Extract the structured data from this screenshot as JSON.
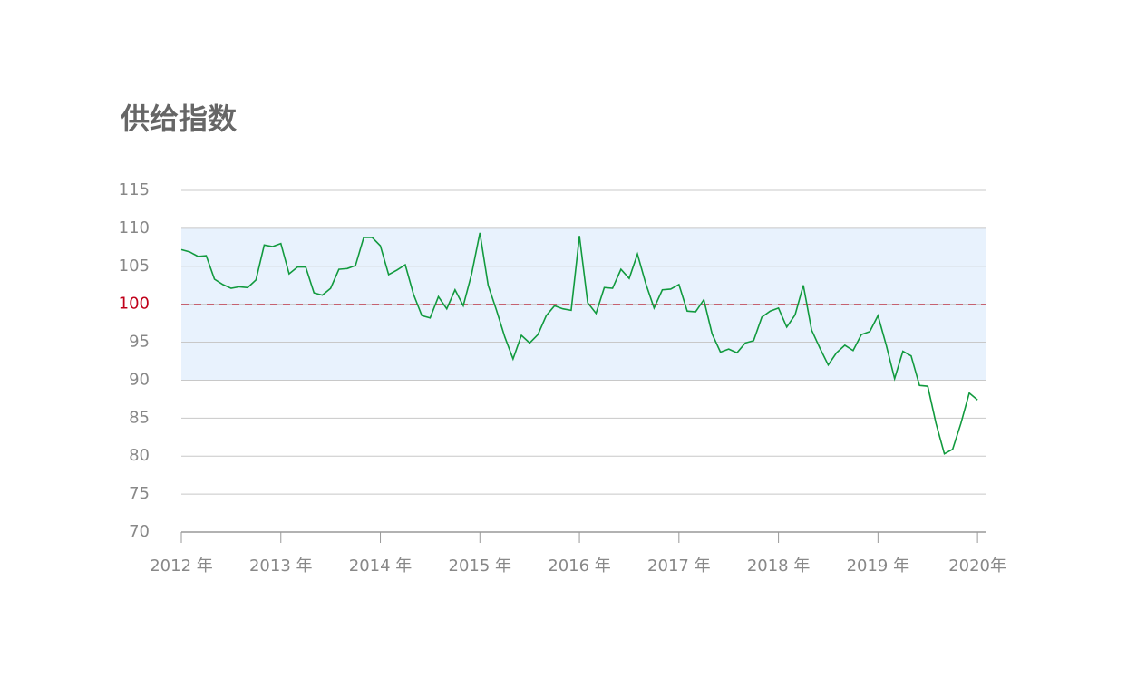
{
  "chart_data": {
    "type": "line",
    "title": "供给指数",
    "x": [
      2012,
      2012.083,
      2012.167,
      2012.25,
      2012.333,
      2012.417,
      2012.5,
      2012.583,
      2012.667,
      2012.75,
      2012.833,
      2012.917,
      2013,
      2013.083,
      2013.167,
      2013.25,
      2013.333,
      2013.417,
      2013.5,
      2013.583,
      2013.667,
      2013.75,
      2013.833,
      2013.917,
      2014,
      2014.083,
      2014.167,
      2014.25,
      2014.333,
      2014.417,
      2014.5,
      2014.583,
      2014.667,
      2014.75,
      2014.833,
      2014.917,
      2015,
      2015.083,
      2015.167,
      2015.25,
      2015.333,
      2015.417,
      2015.5,
      2015.583,
      2015.667,
      2015.75,
      2015.833,
      2015.917,
      2016,
      2016.083,
      2016.167,
      2016.25,
      2016.333,
      2016.417,
      2016.5,
      2016.583,
      2016.667,
      2016.75,
      2016.833,
      2016.917,
      2017,
      2017.083,
      2017.167,
      2017.25,
      2017.333,
      2017.417,
      2017.5,
      2017.583,
      2017.667,
      2017.75,
      2017.833,
      2017.917,
      2018,
      2018.083,
      2018.167,
      2018.25,
      2018.333,
      2018.417,
      2018.5,
      2018.583,
      2018.667,
      2018.75,
      2018.833,
      2018.917,
      2019,
      2019.083,
      2019.167,
      2019.25,
      2019.333,
      2019.417,
      2019.5,
      2019.583,
      2019.667,
      2019.75,
      2019.833,
      2019.917,
      2020
    ],
    "series": [
      {
        "color": "#119a3e",
        "values": [
          107.2,
          106.9,
          106.3,
          106.4,
          103.3,
          102.6,
          102.1,
          102.3,
          102.2,
          103.2,
          107.8,
          107.6,
          108.0,
          104.0,
          104.9,
          104.9,
          101.5,
          101.2,
          102.1,
          104.6,
          104.7,
          105.1,
          108.8,
          108.8,
          107.7,
          103.9,
          104.5,
          105.2,
          101.3,
          98.5,
          98.2,
          101.0,
          99.4,
          101.9,
          99.8,
          104.0,
          109.4,
          102.5,
          99.2,
          95.7,
          92.8,
          95.9,
          94.9,
          96.0,
          98.5,
          99.8,
          99.4,
          99.2,
          109.0,
          100.2,
          98.8,
          102.2,
          102.1,
          104.6,
          103.4,
          106.6,
          102.7,
          99.5,
          101.9,
          102.0,
          102.6,
          99.1,
          99.0,
          100.6,
          96.1,
          93.7,
          94.1,
          93.6,
          94.9,
          95.2,
          98.3,
          99.1,
          99.5,
          97.0,
          98.6,
          102.5,
          96.6,
          94.2,
          92.0,
          93.6,
          94.6,
          93.9,
          96.0,
          96.4,
          98.5,
          94.6,
          90.2,
          93.8,
          93.2,
          89.3,
          89.2,
          84.3,
          80.3,
          80.9,
          84.3,
          88.3,
          87.4
        ]
      }
    ],
    "xlim": [
      2012,
      2020.09
    ],
    "xticks": [
      {
        "value": 2012,
        "label": "2012 年"
      },
      {
        "value": 2013,
        "label": "2013 年"
      },
      {
        "value": 2014,
        "label": "2014 年"
      },
      {
        "value": 2015,
        "label": "2015 年"
      },
      {
        "value": 2016,
        "label": "2016 年"
      },
      {
        "value": 2017,
        "label": "2017 年"
      },
      {
        "value": 2018,
        "label": "2018 年"
      },
      {
        "value": 2019,
        "label": "2019 年"
      },
      {
        "value": 2020,
        "label": "2020年"
      }
    ],
    "ylim": [
      70,
      115
    ],
    "yticks": [
      70,
      75,
      80,
      85,
      90,
      95,
      100,
      105,
      110,
      115
    ],
    "grid": true,
    "band": [
      90,
      110
    ],
    "band_color": "#e8f2fd",
    "reference_line": {
      "value": 100,
      "color": "#c0001a"
    }
  }
}
